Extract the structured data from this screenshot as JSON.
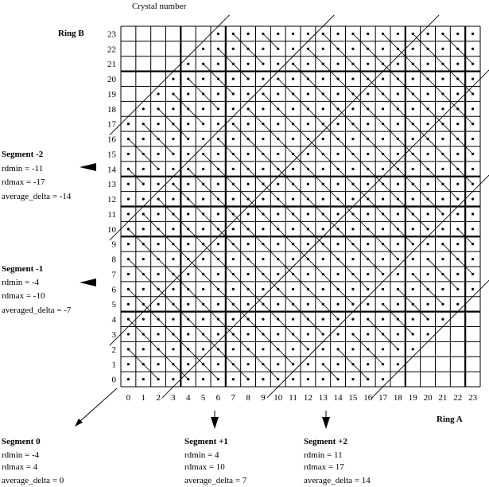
{
  "title": "Crystal number",
  "axis_y_label": "Ring B",
  "axis_x_label": "Ring A",
  "grid": {
    "rows": 24,
    "cols": 24,
    "x_ticks": [
      "0",
      "1",
      "2",
      "3",
      "4",
      "5",
      "6",
      "7",
      "8",
      "9",
      "10",
      "11",
      "12",
      "13",
      "14",
      "15",
      "16",
      "17",
      "18",
      "19",
      "20",
      "21",
      "22",
      "23"
    ],
    "y_ticks": [
      "0",
      "1",
      "2",
      "3",
      "4",
      "5",
      "6",
      "7",
      "8",
      "9",
      "10",
      "11",
      "12",
      "13",
      "14",
      "15",
      "16",
      "17",
      "18",
      "19",
      "20",
      "21",
      "22",
      "23"
    ]
  },
  "segments": {
    "s0": {
      "title": "Segment  0",
      "l1": "rdmin = -4",
      "l2": "rdmax =  4",
      "l3": "average_delta = 0"
    },
    "sp1": {
      "title": "Segment  +1",
      "l1": "rdmin = 4",
      "l2": "rdmax = 10",
      "l3": "average_delta = 7"
    },
    "sp2": {
      "title": "Segment  +2",
      "l1": "rdmin =  11",
      "l2": "rdmax = 17",
      "l3": "average_delta = 14"
    },
    "sm1": {
      "title": "Segment  -1",
      "l1": "rdmin = -4",
      "l2": "rdmax = -10",
      "l3": "averaged_delta = -7"
    },
    "sm2": {
      "title": "Segment  -2",
      "l1": "rdmin =  -11",
      "l2": "rdmax =  -17",
      "l3": "average_delta = -14"
    }
  }
}
